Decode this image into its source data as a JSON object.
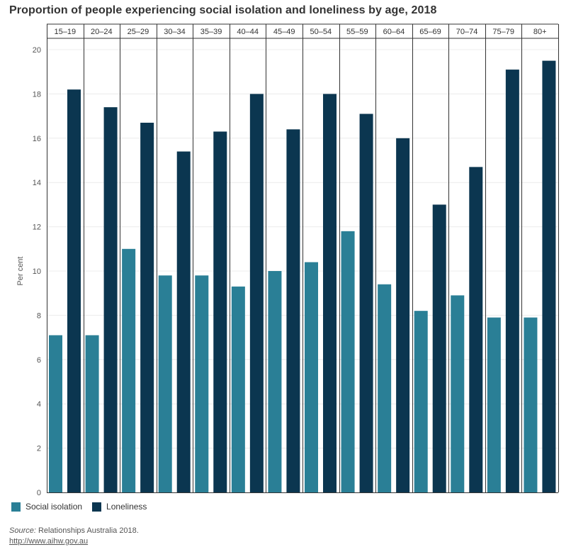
{
  "chart_data": {
    "type": "bar",
    "title": "Proportion of people experiencing social isolation and loneliness by age, 2018",
    "ylabel": "Per cent",
    "xlabel": "",
    "ylim": [
      0,
      20
    ],
    "yticks": [
      "0",
      "2",
      "4",
      "6",
      "8",
      "10",
      "12",
      "14",
      "16",
      "18",
      "20"
    ],
    "grid": true,
    "legend_position": "bottom-left",
    "categories": [
      "15–19",
      "20–24",
      "25–29",
      "30–34",
      "35–39",
      "40–44",
      "45–49",
      "50–54",
      "55–59",
      "60–64",
      "65–69",
      "70–74",
      "75–79",
      "80+"
    ],
    "series": [
      {
        "name": "Social isolation",
        "color": "#2a7f96",
        "values": [
          7.1,
          7.1,
          11.0,
          9.8,
          9.8,
          9.3,
          10.0,
          10.4,
          11.8,
          9.4,
          8.2,
          8.9,
          7.9,
          7.9
        ]
      },
      {
        "name": "Loneliness",
        "color": "#0b3650",
        "values": [
          18.2,
          17.4,
          16.7,
          15.4,
          16.3,
          18.0,
          16.4,
          18.0,
          17.1,
          16.0,
          13.0,
          14.7,
          19.1,
          19.5
        ]
      }
    ]
  },
  "source": {
    "label": "Source:",
    "text": " Relationships Australia 2018.",
    "link": "http://www.aihw.gov.au"
  }
}
